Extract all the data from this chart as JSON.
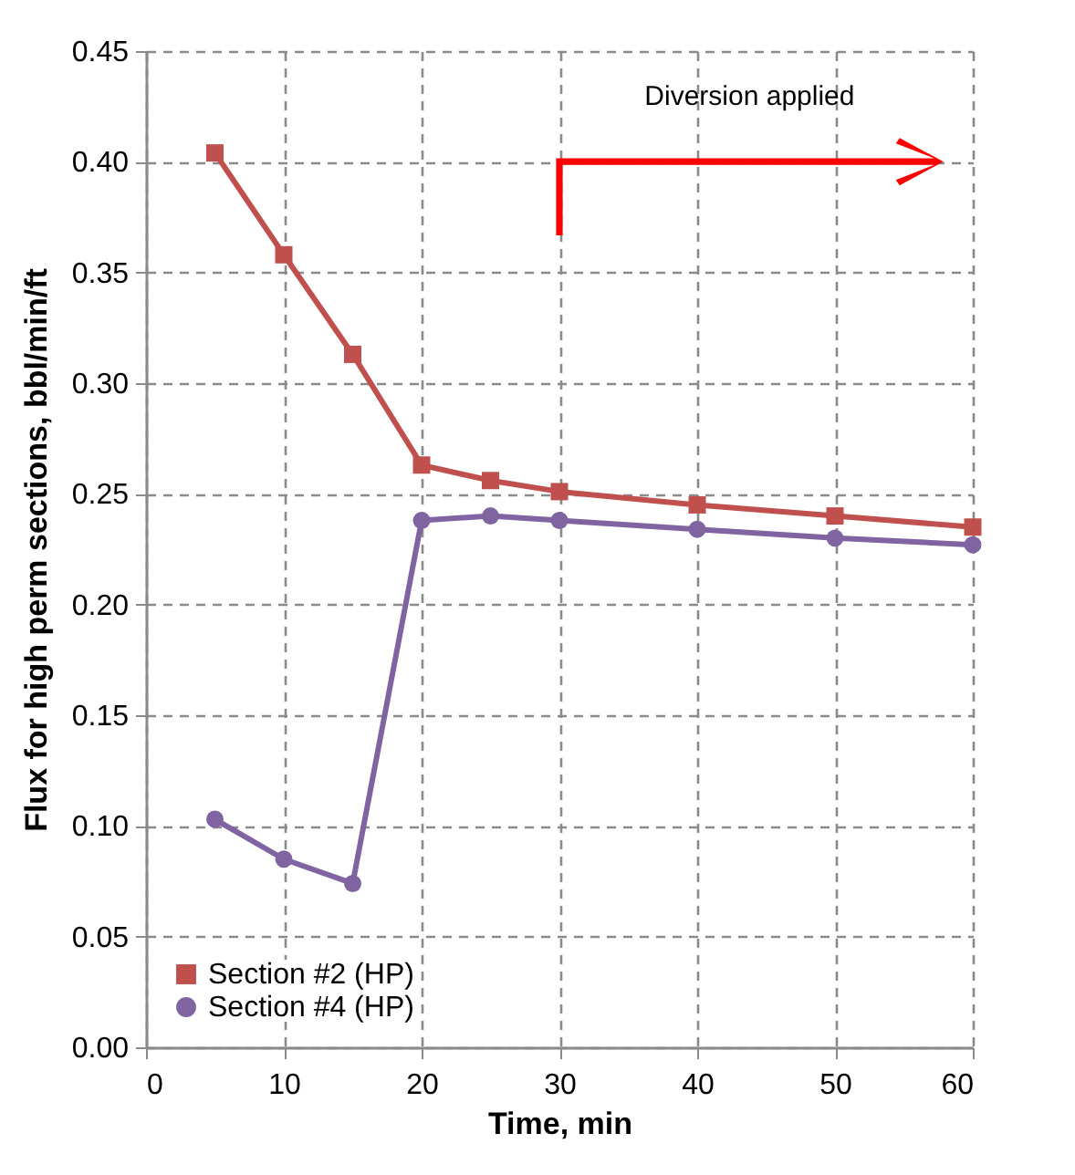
{
  "chart_data": {
    "type": "line",
    "xlabel": "Time, min",
    "ylabel": "Flux for high perm sections, bbl/min/ft",
    "x": [
      5,
      10,
      15,
      20,
      25,
      30,
      40,
      50,
      60
    ],
    "series": [
      {
        "name": "Section #2 (HP)",
        "color": "#c0504d",
        "marker": "square",
        "values": [
          0.404,
          0.358,
          0.313,
          0.263,
          0.256,
          0.251,
          0.245,
          0.24,
          0.235
        ]
      },
      {
        "name": "Section #4 (HP)",
        "color": "#8064a2",
        "marker": "circle",
        "values": [
          0.103,
          0.085,
          0.074,
          0.238,
          0.24,
          0.238,
          0.234,
          0.23,
          0.227
        ]
      }
    ],
    "xlim": [
      0,
      60
    ],
    "xticks": [
      0,
      10,
      20,
      30,
      40,
      50,
      60
    ],
    "ylim": [
      0,
      0.45
    ],
    "yticks": [
      {
        "value": 0,
        "label": "0.00"
      },
      {
        "value": 0.05,
        "label": "0.05"
      },
      {
        "value": 0.1,
        "label": "0.10"
      },
      {
        "value": 0.15,
        "label": "0.15"
      },
      {
        "value": 0.2,
        "label": "0.20"
      },
      {
        "value": 0.25,
        "label": "0.25"
      },
      {
        "value": 0.3,
        "label": "0.30"
      },
      {
        "value": 0.35,
        "label": "0.35"
      },
      {
        "value": 0.4,
        "label": "0.40"
      },
      {
        "value": 0.45,
        "label": "0.45"
      }
    ],
    "annotations": [
      "Diversion applied"
    ],
    "grid": true,
    "legend": "bottom left",
    "line_style": "solid"
  }
}
